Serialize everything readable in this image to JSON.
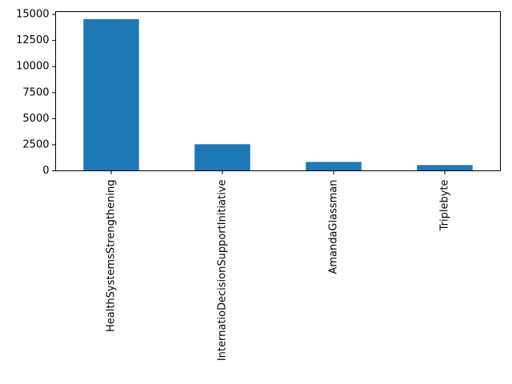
{
  "chart_data": {
    "type": "bar",
    "title": "",
    "xlabel": "",
    "ylabel": "",
    "categories": [
      "HealthSystemsStrengthening",
      "InternatioDecisionSupportInitiative",
      "AmandaGlassman",
      "Triplebyte"
    ],
    "values": [
      14550,
      2550,
      850,
      550
    ],
    "ylim": [
      0,
      15275
    ],
    "yticks": [
      0,
      2500,
      5000,
      7500,
      10000,
      12500,
      15000
    ],
    "ytick_labels": [
      "0",
      "2500",
      "5000",
      "7500",
      "10000",
      "12500",
      "15000"
    ],
    "bar_color": "#1f77b4",
    "grid": false,
    "legend": "none"
  }
}
